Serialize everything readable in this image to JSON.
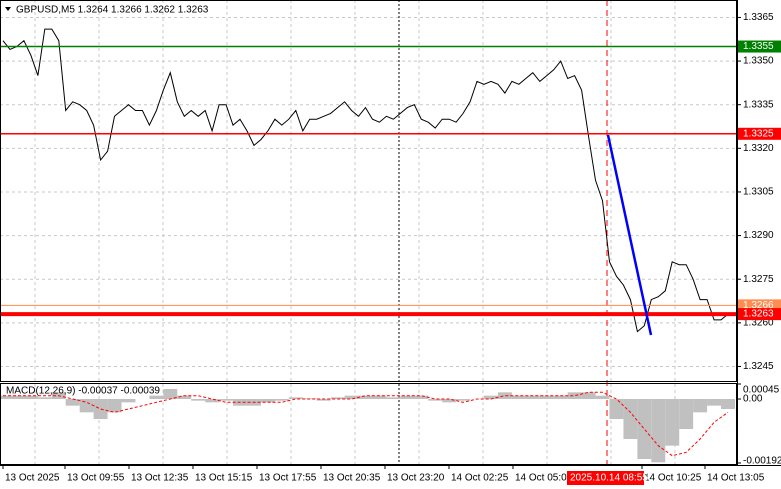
{
  "chart_data": {
    "type": "line",
    "title": "GBPUSD,M5  1.3264 1.3266 1.3262 1.3263",
    "color": "#000000",
    "values": [
      1.3357,
      1.3354,
      1.3355,
      1.3357,
      1.3352,
      1.3345,
      1.3361,
      1.3361,
      1.3357,
      1.3333,
      1.3336,
      1.3335,
      1.3333,
      1.3328,
      1.3316,
      1.3319,
      1.3331,
      1.3333,
      1.3335,
      1.3333,
      1.3333,
      1.3328,
      1.3333,
      1.334,
      1.3346,
      1.3336,
      1.3331,
      1.3333,
      1.3331,
      1.3333,
      1.3326,
      1.3335,
      1.3335,
      1.3328,
      1.333,
      1.3326,
      1.3321,
      1.3323,
      1.3326,
      1.333,
      1.3328,
      1.333,
      1.3333,
      1.3326,
      1.333,
      1.333,
      1.3331,
      1.3332,
      1.3334,
      1.3336,
      1.3333,
      1.3331,
      1.3334,
      1.333,
      1.3329,
      1.3331,
      1.333,
      1.3332,
      1.3334,
      1.3335,
      1.333,
      1.3329,
      1.3327,
      1.333,
      1.333,
      1.3329,
      1.3332,
      1.3336,
      1.3343,
      1.3342,
      1.3343,
      1.3342,
      1.3339,
      1.3343,
      1.3342,
      1.3344,
      1.3346,
      1.3343,
      1.3345,
      1.3347,
      1.335,
      1.3344,
      1.3345,
      1.334,
      1.3324,
      1.3309,
      1.3302,
      1.3281,
      1.3276,
      1.3273,
      1.3268,
      1.3257,
      1.3259,
      1.3268,
      1.3269,
      1.3271,
      1.3281,
      1.328,
      1.328,
      1.3275,
      1.3268,
      1.3268,
      1.3261,
      1.3261,
      1.3263
    ],
    "ylim": [
      1.3371,
      1.324
    ],
    "yticks": [
      1.3365,
      {
        "value": 1.335,
        "label": "1.3350"
      },
      1.3335,
      {
        "value": 1.332,
        "label": "1.3320"
      },
      1.3305,
      {
        "value": 1.329,
        "label": "1.3290"
      },
      1.3275,
      {
        "value": 1.326,
        "label": "1.3260"
      },
      1.3245
    ],
    "grid": true,
    "levels": [
      {
        "value": 1.3355,
        "color": "#008000"
      },
      {
        "value": 1.3325,
        "color": "#ff0000"
      },
      {
        "value": 1.3266,
        "color": "#ff8c50"
      },
      {
        "value": 1.3263,
        "color": "#ff0000"
      }
    ],
    "x_labels": [
      "13 Oct 2025",
      "13 Oct 09:55",
      "13 Oct 12:35",
      "13 Oct 15:15",
      "13 Oct 17:55",
      "13 Oct 20:35",
      "13 Oct 23:20",
      "14 Oct 02:25",
      "14 Oct 05:05",
      "14 Oct 10:25",
      "14 Oct 13:05"
    ],
    "cursor_label": "2025.10.14 08:55",
    "macd": {
      "title": "MACD(12,26,9) -0.00037 -0.00039",
      "hist_color": "#c0c0c0",
      "signal_color": "#ff0000",
      "histogram": [
        0.0001,
        0.0001,
        0.0001,
        5e-05,
        0.0002,
        -0.0002,
        -0.0004,
        -0.0006,
        -0.0004,
        -0.0001,
        0,
        0.0001,
        0.0003,
        0.0001,
        -5e-05,
        -0.0001,
        -5e-05,
        -0.0002,
        -0.0002,
        -0.0001,
        -5e-05,
        5e-05,
        2e-05,
        -5e-05,
        5e-05,
        0.0001,
        0.0001,
        0.0001,
        5e-05,
        0.0001,
        0.0001,
        -5e-05,
        -0.0001,
        -5e-05,
        0,
        0.0001,
        0.0002,
        0.0001,
        0.0001,
        0.0001,
        0.0001,
        0.0002,
        0.0002,
        0.0001,
        -0.0006,
        -0.0012,
        -0.0018,
        -0.0019,
        -0.0014,
        -0.0009,
        -0.0004,
        -0.0002,
        -0.0003
      ],
      "signal": [
        0.0001,
        0.0001,
        0.0001,
        0.0001,
        0.0001,
        0,
        -0.0001,
        -0.0003,
        -0.0004,
        -0.0003,
        -0.0002,
        -0.0001,
        0,
        0.0001,
        0.0001,
        0,
        -0.0001,
        -0.0001,
        -0.0001,
        -0.0001,
        -0.0001,
        0,
        0,
        0,
        0,
        0,
        0.0001,
        0.0001,
        0.0001,
        0.0001,
        0.0001,
        0,
        0,
        -0.0001,
        0,
        0,
        0.0001,
        0.0001,
        0.0001,
        0.0001,
        0.0001,
        0.0001,
        0.0002,
        0.0002,
        0,
        -0.0004,
        -0.0009,
        -0.0014,
        -0.0017,
        -0.0016,
        -0.0012,
        -0.0007,
        -0.0004
      ],
      "ylim": [
        -0.00192,
        0.00045
      ],
      "yticks": [
        0.00045,
        {
          "value": 0,
          "label": "0.00"
        },
        -0.00192
      ]
    }
  }
}
